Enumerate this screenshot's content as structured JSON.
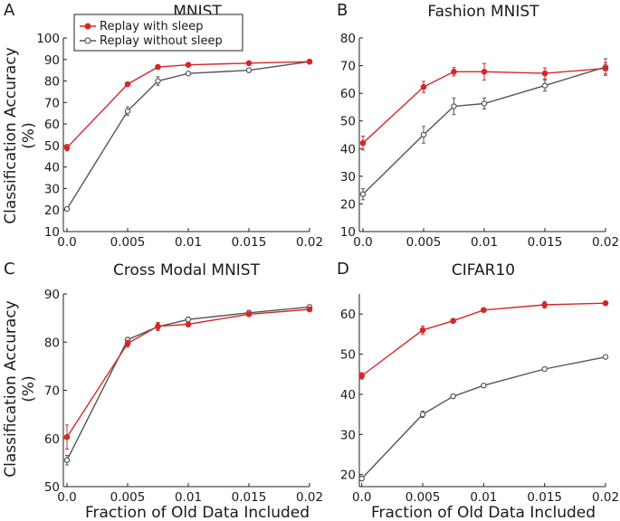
{
  "figure": {
    "ylabel_lines": [
      "Classification Accuracy",
      "(%)"
    ],
    "xlabel": "Fraction of Old Data Included",
    "legend": [
      {
        "label": "Replay with sleep",
        "color": "#d62728"
      },
      {
        "label": "Replay without sleep",
        "color": "#555555"
      }
    ]
  },
  "chart_data": [
    {
      "type": "line",
      "letter": "A",
      "title": "MNIST",
      "xlabel": "",
      "ylabel": "Classification Accuracy (%)",
      "x": [
        0.0,
        0.005,
        0.0075,
        0.01,
        0.015,
        0.02
      ],
      "xticks": [
        0.0,
        0.005,
        0.01,
        0.015,
        0.02
      ],
      "xtick_labels": [
        "0.0",
        "0.005",
        "0.01",
        "0.015",
        "0.02"
      ],
      "xlim": [
        -0.0003,
        0.02
      ],
      "ylim": [
        10,
        100
      ],
      "yticks": [
        10,
        20,
        30,
        40,
        50,
        60,
        70,
        80,
        90,
        100
      ],
      "series": [
        {
          "name": "Replay with sleep",
          "color": "#d62728",
          "values": [
            49,
            78.5,
            86.5,
            87.5,
            88.3,
            89
          ],
          "errors": [
            1.5,
            0.8,
            1,
            0.6,
            0.5,
            0.5
          ]
        },
        {
          "name": "Replay without sleep",
          "color": "#555555",
          "values": [
            20.5,
            66,
            80,
            83.5,
            85,
            89
          ],
          "errors": [
            0.8,
            2,
            2,
            0.6,
            1,
            1
          ]
        }
      ]
    },
    {
      "type": "line",
      "letter": "B",
      "title": "Fashion MNIST",
      "xlabel": "",
      "ylabel": "",
      "x": [
        0.0,
        0.005,
        0.0075,
        0.01,
        0.015,
        0.02
      ],
      "xticks": [
        0.0,
        0.005,
        0.01,
        0.015,
        0.02
      ],
      "xtick_labels": [
        "0.0",
        "0.005",
        "0.01",
        "0.015",
        "0.02"
      ],
      "xlim": [
        -0.0003,
        0.02
      ],
      "ylim": [
        10,
        80
      ],
      "yticks": [
        10,
        20,
        30,
        40,
        50,
        60,
        70,
        80
      ],
      "series": [
        {
          "name": "Replay with sleep",
          "color": "#d62728",
          "values": [
            42,
            62.3,
            67.8,
            67.8,
            67.2,
            69
          ],
          "errors": [
            2.5,
            2,
            1.5,
            3,
            2,
            2
          ]
        },
        {
          "name": "Replay without sleep",
          "color": "#555555",
          "values": [
            23.5,
            45,
            55.3,
            56.3,
            62.8,
            69.5
          ],
          "errors": [
            2,
            3,
            3,
            2,
            2,
            3
          ]
        }
      ]
    },
    {
      "type": "line",
      "letter": "C",
      "title": "Cross Modal MNIST",
      "xlabel": "Fraction of Old Data Included",
      "ylabel": "Classification Accuracy (%)",
      "x": [
        0.0,
        0.005,
        0.0075,
        0.01,
        0.015,
        0.02
      ],
      "xticks": [
        0.0,
        0.005,
        0.01,
        0.015,
        0.02
      ],
      "xtick_labels": [
        "0.0",
        "0.005",
        "0.01",
        "0.015",
        "0.02"
      ],
      "xlim": [
        -0.0003,
        0.02
      ],
      "ylim": [
        50,
        90
      ],
      "yticks": [
        50,
        60,
        70,
        80,
        90
      ],
      "series": [
        {
          "name": "Replay with sleep",
          "color": "#d62728",
          "values": [
            60.3,
            79.7,
            83.3,
            83.7,
            85.8,
            86.8
          ],
          "errors": [
            2.5,
            0.7,
            0.8,
            0.5,
            0.4,
            0.4
          ]
        },
        {
          "name": "Replay without sleep",
          "color": "#555555",
          "values": [
            55.5,
            80.5,
            83.2,
            84.7,
            86.1,
            87.3
          ],
          "errors": [
            1,
            0.5,
            0.8,
            0.5,
            0.5,
            0.4
          ]
        }
      ]
    },
    {
      "type": "line",
      "letter": "D",
      "title": "CIFAR10",
      "xlabel": "Fraction of Old Data Included",
      "ylabel": "",
      "x": [
        0.0,
        0.005,
        0.0075,
        0.01,
        0.015,
        0.02
      ],
      "xticks": [
        0.0,
        0.005,
        0.01,
        0.015,
        0.02
      ],
      "xtick_labels": [
        "0.0",
        "0.005",
        "0.01",
        "0.015",
        "0.02"
      ],
      "xlim": [
        -0.0002,
        0.02
      ],
      "ylim": [
        17,
        65
      ],
      "yticks": [
        20,
        30,
        40,
        50,
        60
      ],
      "series": [
        {
          "name": "Replay with sleep",
          "color": "#d62728",
          "values": [
            44.6,
            56,
            58.3,
            61,
            62.3,
            62.7
          ],
          "errors": [
            0.8,
            1,
            0.5,
            0.4,
            0.8,
            0.5
          ]
        },
        {
          "name": "Replay without sleep",
          "color": "#555555",
          "values": [
            19,
            35,
            39.5,
            42.2,
            46.3,
            49.3
          ],
          "errors": [
            0.5,
            0.8,
            0.5,
            0.3,
            0.3,
            0.4
          ]
        }
      ]
    }
  ]
}
